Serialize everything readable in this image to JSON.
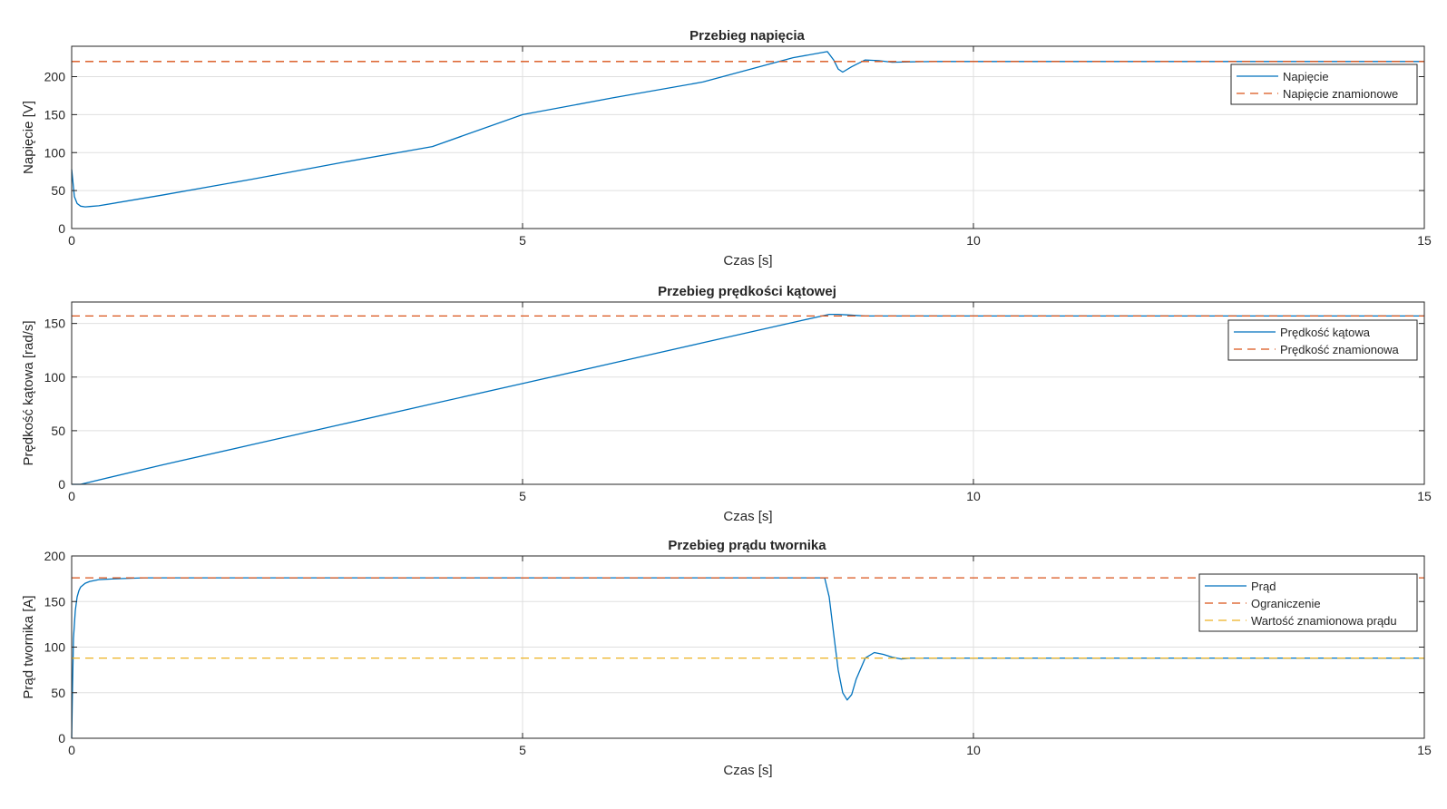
{
  "chart_data": [
    {
      "type": "line",
      "title": "Przebieg napięcia",
      "xlabel": "Czas [s]",
      "ylabel": "Napięcie [V]",
      "xlim": [
        0,
        15
      ],
      "ylim": [
        0,
        240
      ],
      "xticks": [
        0,
        5,
        10,
        15
      ],
      "yticks": [
        0,
        50,
        100,
        150,
        200
      ],
      "grid": true,
      "legend_position": "top-right",
      "series": [
        {
          "name": "Napięcie",
          "style": "solid",
          "color": "#0072BD",
          "x": [
            0,
            0.03,
            0.06,
            0.1,
            0.15,
            0.2,
            0.3,
            1,
            2,
            3,
            4,
            5,
            6,
            7,
            8,
            8.38,
            8.45,
            8.5,
            8.55,
            8.65,
            8.8,
            8.95,
            9.1,
            9.3,
            9.6,
            10,
            12,
            15
          ],
          "y": [
            78,
            42,
            33,
            29.5,
            28.5,
            29,
            30,
            44,
            65,
            87,
            108,
            150,
            172,
            193,
            225,
            233,
            222,
            210,
            206,
            213,
            222,
            221,
            219,
            219.5,
            220,
            220,
            220,
            220
          ]
        },
        {
          "name": "Napięcie znamionowe",
          "style": "dashed",
          "color": "#D95319",
          "x": [
            0,
            15
          ],
          "y": [
            220,
            220
          ]
        }
      ]
    },
    {
      "type": "line",
      "title": "Przebieg prędkości kątowej",
      "xlabel": "Czas [s]",
      "ylabel": "Prędkość kątowa [rad/s]",
      "xlim": [
        0,
        15
      ],
      "ylim": [
        0,
        170
      ],
      "xticks": [
        0,
        5,
        10,
        15
      ],
      "yticks": [
        0,
        50,
        100,
        150
      ],
      "grid": true,
      "legend_position": "top-right",
      "series": [
        {
          "name": "Prędkość kątowa",
          "style": "solid",
          "color": "#0072BD",
          "x": [
            0,
            0.1,
            1,
            2,
            3,
            4,
            5,
            6,
            7,
            8,
            8.4,
            8.5,
            8.6,
            8.7,
            8.8,
            9,
            10,
            15
          ],
          "y": [
            0,
            0,
            18,
            37,
            56,
            75,
            94,
            113,
            132,
            151,
            158.5,
            158.5,
            158,
            157.5,
            157,
            157,
            157,
            157
          ]
        },
        {
          "name": "Prędkość znamionowa",
          "style": "dashed",
          "color": "#D95319",
          "x": [
            0,
            15
          ],
          "y": [
            157,
            157
          ]
        }
      ]
    },
    {
      "type": "line",
      "title": "Przebieg prądu twornika",
      "xlabel": "Czas [s]",
      "ylabel": "Prąd twornika [A]",
      "xlim": [
        0,
        15
      ],
      "ylim": [
        0,
        200
      ],
      "xticks": [
        0,
        5,
        10,
        15
      ],
      "yticks": [
        0,
        50,
        100,
        150,
        200
      ],
      "grid": true,
      "legend_position": "top-right",
      "series": [
        {
          "name": "Prąd",
          "style": "solid",
          "color": "#0072BD",
          "x": [
            0,
            0.01,
            0.02,
            0.04,
            0.06,
            0.08,
            0.1,
            0.15,
            0.2,
            0.3,
            0.5,
            0.8,
            1,
            3,
            5,
            7,
            8,
            8.35,
            8.4,
            8.45,
            8.5,
            8.55,
            8.6,
            8.65,
            8.7,
            8.8,
            8.9,
            9,
            9.1,
            9.2,
            9.3,
            9.5,
            10,
            12,
            15
          ],
          "y": [
            0,
            60,
            110,
            140,
            155,
            162,
            166,
            170,
            172,
            174,
            175,
            176,
            176,
            176,
            176,
            176,
            176,
            176,
            155,
            115,
            75,
            50,
            42,
            48,
            65,
            88,
            94,
            92,
            89,
            87,
            88,
            88,
            88,
            88,
            88
          ]
        },
        {
          "name": "Ograniczenie",
          "style": "dashed",
          "color": "#D95319",
          "x": [
            0,
            15
          ],
          "y": [
            176,
            176
          ]
        },
        {
          "name": "Wartość znamionowa prądu",
          "style": "dashed",
          "color": "#EDB120",
          "x": [
            0,
            15
          ],
          "y": [
            88,
            88
          ]
        }
      ]
    }
  ]
}
